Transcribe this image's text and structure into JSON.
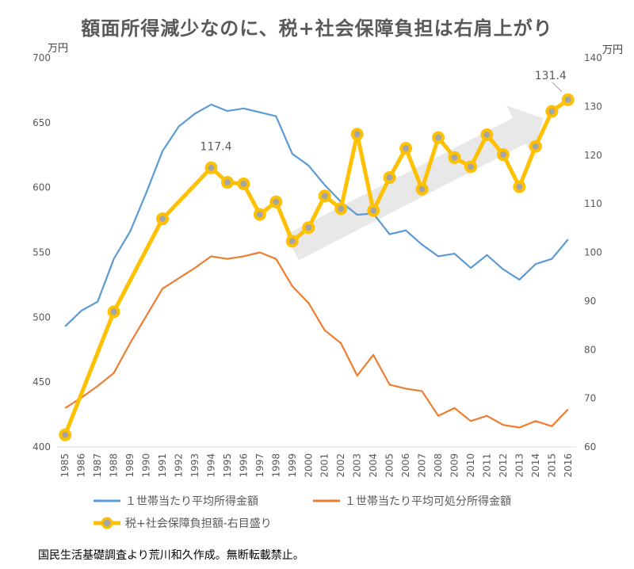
{
  "title": "額面所得減少なのに、税+社会保障負担は右肩上がり",
  "units": {
    "left": "万円",
    "right": "万円"
  },
  "source_note": "国民生活基礎調査より荒川和久作成。無断転載禁止。",
  "colors": {
    "series1": "#5B9BD5",
    "series2": "#ED7D31",
    "series3": "#FFC000",
    "marker_center": "#A5A5A5",
    "arrow": "#D9D9D9"
  },
  "chart_data": {
    "type": "line",
    "title": "額面所得減少なのに、税+社会保障負担は右肩上がり",
    "x": [
      "1985",
      "1986",
      "1987",
      "1988",
      "1989",
      "1990",
      "1991",
      "1992",
      "1993",
      "1994",
      "1995",
      "1996",
      "1997",
      "1998",
      "1999",
      "2000",
      "2001",
      "2002",
      "2003",
      "2004",
      "2005",
      "2006",
      "2007",
      "2008",
      "2009",
      "2010",
      "2011",
      "2012",
      "2013",
      "2014",
      "2015",
      "2016"
    ],
    "ylim_left": [
      400,
      700
    ],
    "yticks_left": [
      400,
      450,
      500,
      550,
      600,
      650,
      700
    ],
    "ylim_right": [
      60,
      140
    ],
    "yticks_right": [
      60,
      70,
      80,
      90,
      100,
      110,
      120,
      130,
      140
    ],
    "grid": false,
    "legend_position": "bottom",
    "series": [
      {
        "name": "１世帯当たり平均所得金額",
        "axis": "left",
        "values": [
          493,
          505,
          512,
          545,
          566,
          596,
          628,
          647,
          657,
          664,
          659,
          661,
          658,
          655,
          626,
          617,
          602,
          589,
          579,
          580,
          564,
          567,
          556,
          547,
          549,
          538,
          548,
          537,
          529,
          541,
          545,
          560
        ]
      },
      {
        "name": "１世帯当たり平均可処分所得金額",
        "axis": "left",
        "values": [
          430,
          438,
          447,
          457,
          480,
          501,
          522,
          530,
          538,
          547,
          545,
          547,
          550,
          545,
          524,
          511,
          490,
          480,
          455,
          471,
          448,
          445,
          443,
          424,
          430,
          420,
          424,
          417,
          415,
          420,
          416,
          429
        ]
      },
      {
        "name": "税+社会保障負担額-右目盛り",
        "axis": "right",
        "values": [
          62.5,
          null,
          null,
          87.8,
          null,
          null,
          106.9,
          null,
          null,
          117.4,
          114.4,
          114.1,
          107.8,
          110.4,
          102.3,
          105.1,
          111.6,
          109.0,
          124.3,
          108.6,
          115.4,
          121.4,
          113.0,
          123.6,
          119.5,
          117.6,
          124.2,
          120.1,
          113.5,
          121.8,
          129.0,
          131.4
        ]
      }
    ],
    "annotations": [
      {
        "label": "117.4",
        "x": "1994",
        "series": 2
      },
      {
        "label": "131.4",
        "x": "2016",
        "series": 2
      }
    ]
  }
}
